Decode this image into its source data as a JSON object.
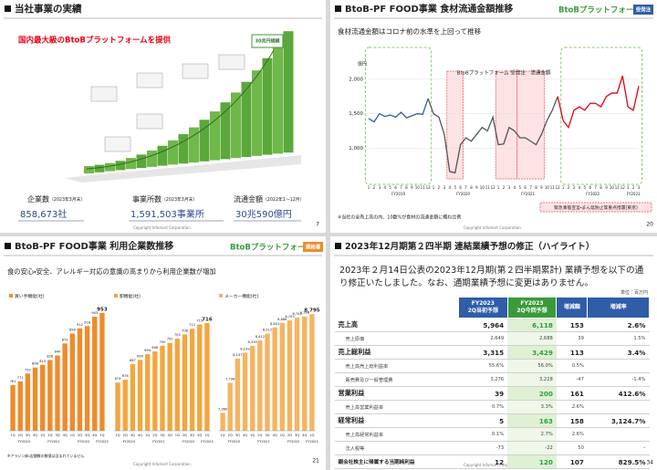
{
  "slides": [
    {
      "title": "当社事業の実績",
      "tagline": "国内最大級のBtoBプラットフォームを提供",
      "callout": "30兆円規模",
      "stats": [
        {
          "label": "企業数",
          "note": "（2023年3月末）",
          "value": "858,673社"
        },
        {
          "label": "事業所数",
          "note": "（2023年3月末）",
          "value": "1,591,503事業所"
        },
        {
          "label": "流通金額",
          "note": "（2022年1～12月）",
          "value": "30兆590億円"
        }
      ],
      "copyright": "Copyright Infomart Corporation.",
      "page": "7"
    },
    {
      "title": "BtoB-PF FOOD事業 食材流通金額推移",
      "logo": "BtoBプラットフォーム",
      "badge": "受発注",
      "subtitle": "食材流通金額はコロナ前の水準を上回って推移",
      "note": "※当社の全売上高の内、10数%が食材の流通金額に概ね比例",
      "legend_box": "緊急事態宣言・まん延防止等重点措置(東京)",
      "copyright": "Copyright Infomart Corporation.",
      "page": "20"
    },
    {
      "title": "BtoB-PF FOOD事業 利用企業数推移",
      "logo": "BtoBプラットフォーム",
      "badge": "規格書",
      "subtitle": "食の安心・安全、アレルギー対応の意識の高まりから利用企業数が増加",
      "footnote": "※アラジン卸・店舗数の数値は含まれていません",
      "copyright": "Copyright Infomart Corporation.",
      "page": "21"
    },
    {
      "title": "2023年12月期第２四半期 連結業績予想の修正（ハイライト）",
      "lead": "2023年２月14日公表の2023年12月期(第２四半期累計) 業績予想を以下の通り修正いたしました。なお、通期業績予想に変更はありません。",
      "unit": "単位：百万円",
      "table": {
        "header": [
          [
            "FY2023",
            "2Q当初予想"
          ],
          [
            "FY2023",
            "2Q今回予想"
          ],
          [
            "増減額"
          ],
          [
            "増減率"
          ]
        ],
        "rows": [
          [
            "売上高",
            "5,964",
            "6,118",
            "153",
            "2.6%"
          ],
          [
            "売上原価",
            "2,649",
            "2,688",
            "39",
            "1.5%"
          ],
          [
            "売上総利益",
            "3,315",
            "3,429",
            "113",
            "3.4%"
          ],
          [
            "売上高売上総利益率",
            "55.6%",
            "56.0%",
            "0.5%"
          ],
          [
            "販売費及び一般管理費",
            "3,276",
            "3,228",
            "-47",
            "-1.4%"
          ],
          [
            "営業利益",
            "39",
            "200",
            "161",
            "412.6%"
          ],
          [
            "売上高営業利益率",
            "0.7%",
            "3.3%",
            "2.6%"
          ],
          [
            "経常利益",
            "5",
            "163",
            "158",
            "3,124.7%"
          ],
          [
            "売上高経常利益率",
            "0.1%",
            "2.7%",
            "2.6%"
          ],
          [
            "法人税等",
            "-73",
            "-22",
            "50",
            "–"
          ],
          [
            "親会社株主に帰属する当期純利益",
            "12",
            "120",
            "107",
            "829.5%"
          ]
        ]
      },
      "copyright": "Copyright Infomart Corporation.",
      "page": "34"
    }
  ],
  "chart_data": [
    {
      "type": "line",
      "title": "BtoBプラットフォーム 受発注　流通金額",
      "y_label": "億円",
      "categories": [
        "1",
        "2",
        "3",
        "4",
        "5",
        "6",
        "7",
        "8",
        "9",
        "10",
        "11",
        "12",
        "1",
        "2",
        "3",
        "4",
        "5",
        "6",
        "7",
        "8",
        "9",
        "10",
        "11",
        "12",
        "1",
        "2",
        "3",
        "4",
        "5",
        "6",
        "7",
        "8",
        "9",
        "10",
        "11",
        "12",
        "1",
        "2",
        "3",
        "4",
        "5",
        "6",
        "7",
        "8",
        "9",
        "10",
        "11",
        "12",
        "1",
        "2",
        "3"
      ],
      "groups": [
        "FY2019",
        "FY2020",
        "FY2021",
        "FY2022",
        "FY2023"
      ],
      "ylim": [
        500,
        2250
      ],
      "yticks": [
        {
          "value": 1000,
          "label": "1,000"
        },
        {
          "value": 1500,
          "label": "1,500"
        },
        {
          "value": 2000,
          "label": "2,000"
        }
      ],
      "grid": true,
      "series": [
        {
          "color": "#2f5da8",
          "values": [
            1430,
            1380,
            1500,
            1460,
            1480,
            1450,
            1520,
            1440,
            1470,
            1500,
            1490,
            1720,
            null,
            null,
            null,
            null,
            null,
            null,
            null,
            null,
            null,
            null,
            null,
            null,
            null,
            null,
            null,
            null,
            null,
            null,
            null,
            null,
            null,
            null,
            null,
            null,
            null,
            null,
            null,
            null,
            null,
            null,
            null,
            null,
            null,
            null,
            null,
            null,
            null,
            null,
            null
          ]
        },
        {
          "color": "#555555",
          "values": [
            null,
            null,
            null,
            null,
            null,
            null,
            null,
            null,
            null,
            null,
            null,
            null,
            1500,
            1450,
            1200,
            660,
            640,
            1050,
            1150,
            1100,
            1200,
            1300,
            1250,
            1450,
            1050,
            1060,
            1300,
            1250,
            1150,
            1150,
            1100,
            1050,
            1200,
            1400,
            1550,
            1750,
            null,
            null,
            null,
            null,
            null,
            null,
            null,
            null,
            null,
            null,
            null,
            null,
            null,
            null,
            null
          ]
        },
        {
          "color": "#e60012",
          "values": [
            null,
            null,
            null,
            null,
            null,
            null,
            null,
            null,
            null,
            null,
            null,
            null,
            null,
            null,
            null,
            null,
            null,
            null,
            null,
            null,
            null,
            null,
            null,
            null,
            null,
            null,
            null,
            null,
            null,
            null,
            null,
            null,
            null,
            null,
            null,
            null,
            1400,
            1300,
            1550,
            1600,
            1550,
            1650,
            1650,
            1600,
            1750,
            1800,
            1800,
            2050,
            1600,
            1550,
            1900
          ]
        }
      ]
    },
    {
      "type": "bar",
      "title": "買い手機能(社)",
      "color": "#ee8b2c",
      "categories": [
        "1Q",
        "2Q",
        "3Q",
        "4Q",
        "1Q",
        "2Q",
        "3Q",
        "4Q",
        "1Q",
        "2Q",
        "3Q",
        "4Q",
        "1Q"
      ],
      "groups": [
        "FY2020",
        "FY2021",
        "FY2022",
        "FY2023"
      ],
      "ylim": [
        640,
        960
      ],
      "values": [
        761,
        771,
        792,
        808,
        815,
        828,
        840,
        872,
        898,
        912,
        918,
        943,
        953
      ]
    },
    {
      "type": "bar",
      "title": "卸機能(社)",
      "color": "#f2a640",
      "categories": [
        "1Q",
        "2Q",
        "3Q",
        "4Q",
        "1Q",
        "2Q",
        "3Q",
        "4Q",
        "1Q",
        "2Q",
        "3Q",
        "4Q",
        "1Q"
      ],
      "groups": [
        "FY2020",
        "FY2021",
        "FY2022",
        "FY2023"
      ],
      "ylim": [
        640,
        725
      ],
      "values": [
        674,
        676,
        687,
        690,
        694,
        696,
        700,
        702,
        705,
        708,
        712,
        715,
        716
      ]
    },
    {
      "type": "bar",
      "title": "メーカー機能(社)",
      "color": "#f5b461",
      "categories": [
        "1Q",
        "2Q",
        "3Q",
        "4Q",
        "1Q",
        "2Q",
        "3Q",
        "4Q",
        "1Q",
        "2Q",
        "3Q",
        "4Q",
        "1Q"
      ],
      "groups": [
        "FY2020",
        "FY2021",
        "FY2022",
        "FY2023"
      ],
      "ylim": [
        7100,
        8850
      ],
      "values": [
        7360,
        7796,
        8147,
        8233,
        8335,
        8412,
        8512,
        8601,
        8666,
        8703,
        8742,
        8759,
        8795
      ],
      "value_labels": [
        "7,360",
        "7,796",
        "8,147",
        "8,233",
        "8,335",
        "8,412",
        "8,512",
        "8,601",
        "8,666",
        "8,703",
        "8,742",
        "8,759",
        "8,795"
      ]
    }
  ]
}
